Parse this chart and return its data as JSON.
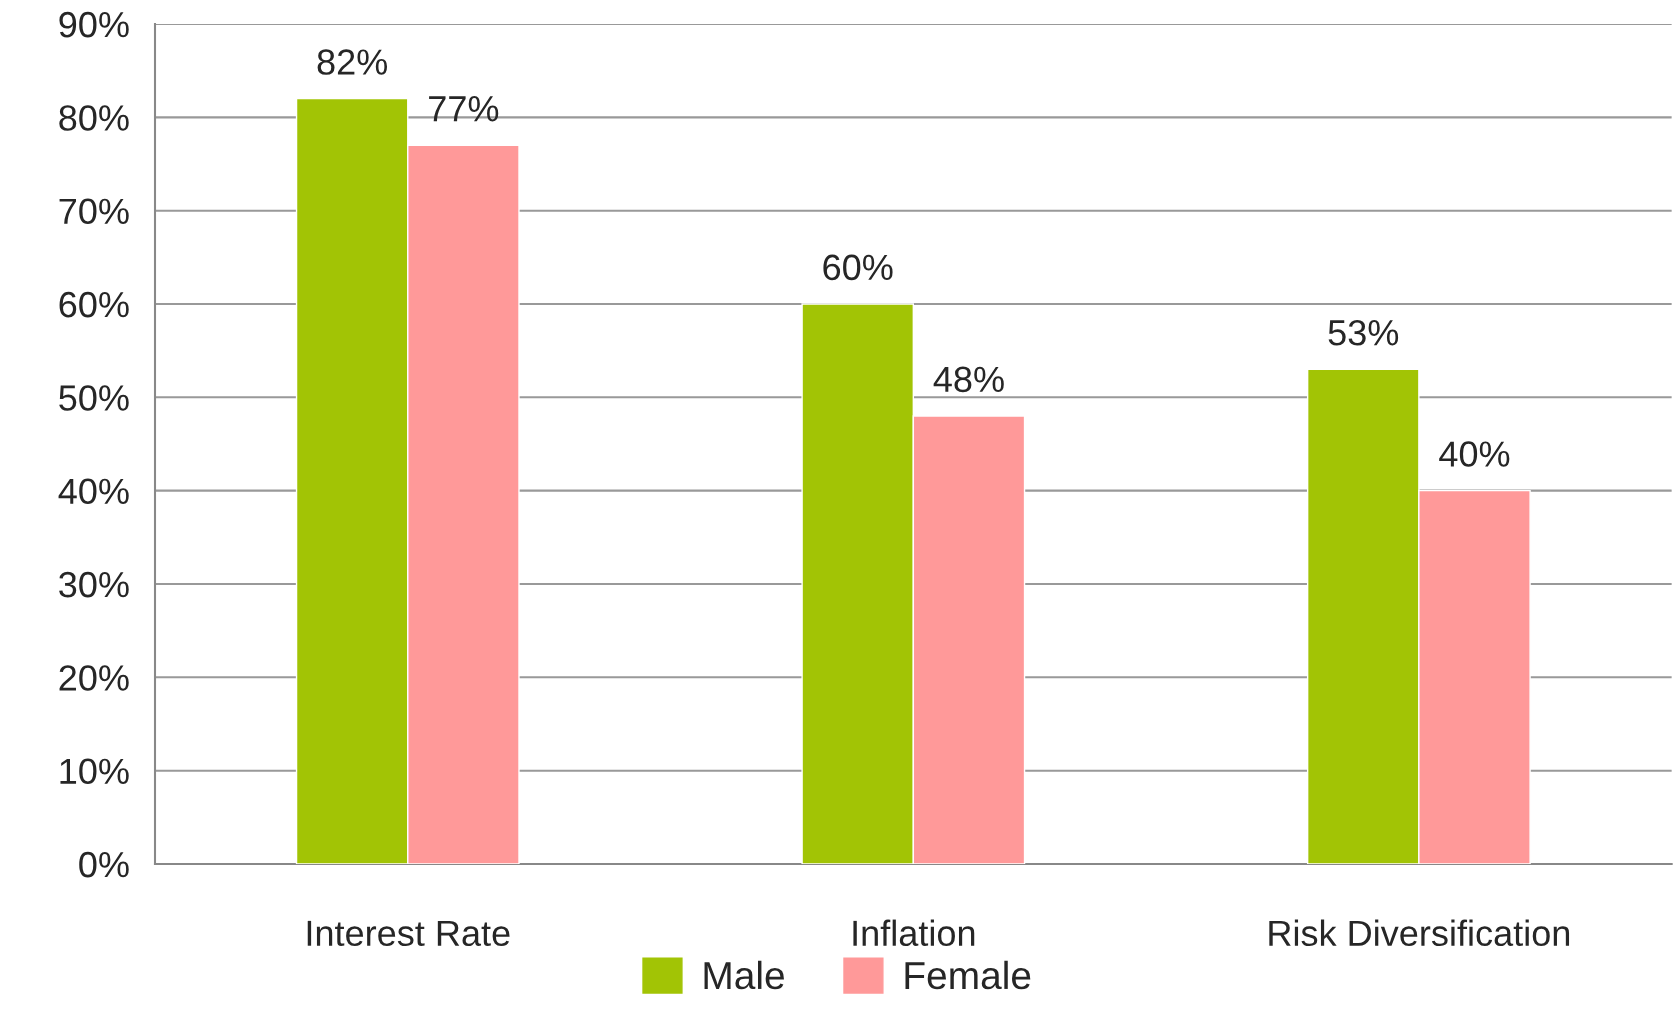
{
  "chart_data": {
    "type": "bar",
    "categories": [
      "Interest Rate",
      "Inflation",
      "Risk Diversification"
    ],
    "series": [
      {
        "name": "Male",
        "color": "#a2c405",
        "values": [
          82,
          60,
          53
        ],
        "value_labels": [
          "82%",
          "60%",
          "53%"
        ]
      },
      {
        "name": "Female",
        "color": "#ff9999",
        "values": [
          77,
          48,
          40
        ],
        "value_labels": [
          "77%",
          "48%",
          "40%"
        ]
      }
    ],
    "ylim": [
      0,
      90
    ],
    "yticks": [
      {
        "value": 0,
        "label": "0%"
      },
      {
        "value": 10,
        "label": "10%"
      },
      {
        "value": 20,
        "label": "20%"
      },
      {
        "value": 30,
        "label": "30%"
      },
      {
        "value": 40,
        "label": "40%"
      },
      {
        "value": 50,
        "label": "50%"
      },
      {
        "value": 60,
        "label": "60%"
      },
      {
        "value": 70,
        "label": "70%"
      },
      {
        "value": 80,
        "label": "80%"
      },
      {
        "value": 90,
        "label": "90%"
      }
    ],
    "grid": "y",
    "legend": "bottom"
  }
}
